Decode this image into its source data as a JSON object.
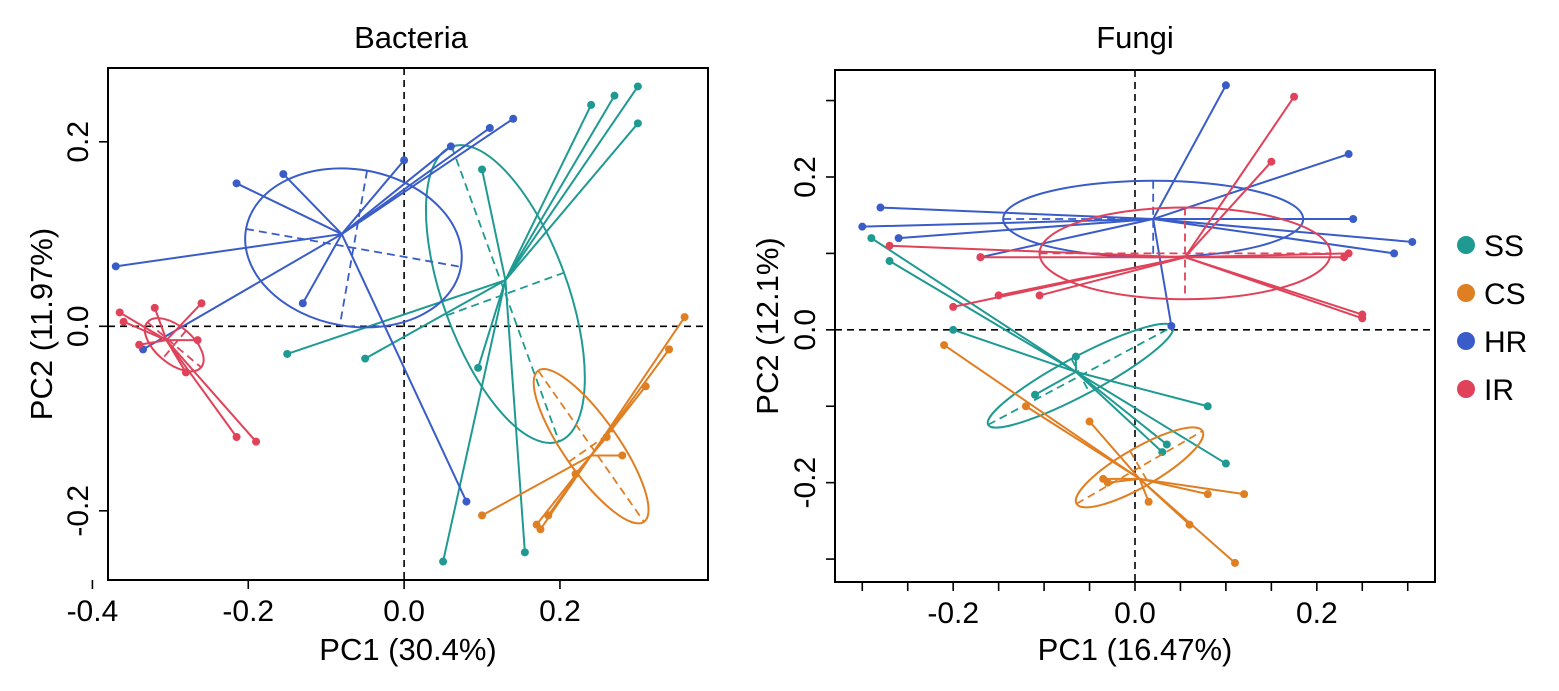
{
  "colors": {
    "SS": "#1F9A92",
    "CS": "#E07E22",
    "HR": "#3A5CC8",
    "IR": "#E0425A"
  },
  "legend": [
    {
      "group": "SS",
      "label": "SS"
    },
    {
      "group": "CS",
      "label": "CS"
    },
    {
      "group": "HR",
      "label": "HR"
    },
    {
      "group": "IR",
      "label": "IR"
    }
  ],
  "chart_data": [
    {
      "type": "scatter",
      "title": "Bacteria",
      "xlabel": "PC1 (30.4%)",
      "ylabel": "PC2 (11.97%)",
      "xlim": [
        -0.38,
        0.39
      ],
      "ylim": [
        -0.275,
        0.28
      ],
      "xticks": [
        {
          "v": -0.4,
          "label": "-0.4"
        },
        {
          "v": -0.2,
          "label": "-0.2"
        },
        {
          "v": 0.0,
          "label": "0.0"
        },
        {
          "v": 0.2,
          "label": "0.2"
        }
      ],
      "yticks": [
        {
          "v": -0.2,
          "label": "-0.2"
        },
        {
          "v": 0.0,
          "label": "0.0"
        },
        {
          "v": 0.2,
          "label": "0.2"
        }
      ],
      "groups": [
        {
          "name": "SS",
          "centroid": [
            0.13,
            0.05
          ],
          "ellipse": {
            "cx": 0.13,
            "cy": 0.035,
            "rx": 0.08,
            "ry": 0.17,
            "angle": 20
          },
          "points": [
            [
              0.3,
              0.26
            ],
            [
              0.27,
              0.25
            ],
            [
              0.24,
              0.24
            ],
            [
              0.3,
              0.22
            ],
            [
              0.1,
              0.17
            ],
            [
              -0.15,
              -0.03
            ],
            [
              -0.05,
              -0.035
            ],
            [
              0.095,
              -0.045
            ],
            [
              0.05,
              -0.255
            ],
            [
              0.155,
              -0.245
            ]
          ]
        },
        {
          "name": "CS",
          "centroid": [
            0.24,
            -0.14
          ],
          "ellipse": {
            "cx": 0.24,
            "cy": -0.13,
            "rx": 0.035,
            "ry": 0.1,
            "angle": 35
          },
          "points": [
            [
              0.36,
              0.01
            ],
            [
              0.34,
              -0.025
            ],
            [
              0.31,
              -0.065
            ],
            [
              0.28,
              -0.14
            ],
            [
              0.1,
              -0.205
            ],
            [
              0.17,
              -0.215
            ],
            [
              0.185,
              -0.205
            ],
            [
              0.175,
              -0.22
            ],
            [
              0.22,
              -0.16
            ],
            [
              0.26,
              -0.12
            ]
          ]
        },
        {
          "name": "HR",
          "centroid": [
            -0.08,
            0.1
          ],
          "ellipse": {
            "cx": -0.065,
            "cy": 0.085,
            "rx": 0.14,
            "ry": 0.085,
            "angle": -10
          },
          "points": [
            [
              0.14,
              0.225
            ],
            [
              0.11,
              0.215
            ],
            [
              0.06,
              0.195
            ],
            [
              0.0,
              0.18
            ],
            [
              -0.155,
              0.165
            ],
            [
              -0.215,
              0.155
            ],
            [
              -0.37,
              0.065
            ],
            [
              -0.13,
              0.025
            ],
            [
              -0.335,
              -0.025
            ],
            [
              0.08,
              -0.19
            ]
          ]
        },
        {
          "name": "IR",
          "centroid": [
            -0.305,
            -0.015
          ],
          "ellipse": {
            "cx": -0.295,
            "cy": -0.02,
            "rx": 0.045,
            "ry": 0.02,
            "angle": -40
          },
          "points": [
            [
              -0.365,
              0.015
            ],
            [
              -0.36,
              0.005
            ],
            [
              -0.32,
              0.02
            ],
            [
              -0.26,
              0.025
            ],
            [
              -0.34,
              -0.02
            ],
            [
              -0.265,
              -0.015
            ],
            [
              -0.215,
              -0.12
            ],
            [
              -0.19,
              -0.125
            ],
            [
              -0.28,
              -0.05
            ]
          ]
        }
      ]
    },
    {
      "type": "scatter",
      "title": "Fungi",
      "xlabel": "PC1 (16.47%)",
      "ylabel": "PC2 (12.1%)",
      "xlim": [
        -0.33,
        0.33
      ],
      "ylim": [
        -0.33,
        0.34
      ],
      "xticks": [
        {
          "v": -0.2,
          "label": "-0.2"
        },
        {
          "v": 0.0,
          "label": "0.0"
        },
        {
          "v": 0.2,
          "label": "0.2"
        }
      ],
      "minor_xticks": [
        -0.3,
        -0.25,
        -0.15,
        -0.1,
        -0.05,
        0.05,
        0.1,
        0.15,
        0.25,
        0.3
      ],
      "yticks": [
        {
          "v": -0.2,
          "label": "-0.2"
        },
        {
          "v": 0.0,
          "label": "0.0"
        },
        {
          "v": 0.2,
          "label": "0.2"
        }
      ],
      "minor_yticks": [
        -0.3,
        -0.1,
        0.1,
        0.3
      ],
      "groups": [
        {
          "name": "SS",
          "centroid": [
            -0.065,
            -0.055
          ],
          "ellipse": {
            "cx": -0.06,
            "cy": -0.06,
            "rx": 0.115,
            "ry": 0.025,
            "angle": 28
          },
          "points": [
            [
              -0.29,
              0.12
            ],
            [
              -0.27,
              0.09
            ],
            [
              -0.2,
              0.0
            ],
            [
              -0.11,
              -0.085
            ],
            [
              -0.065,
              -0.035
            ],
            [
              0.08,
              -0.1
            ],
            [
              0.035,
              -0.15
            ],
            [
              0.03,
              -0.16
            ],
            [
              0.1,
              -0.175
            ]
          ]
        },
        {
          "name": "CS",
          "centroid": [
            0.005,
            -0.195
          ],
          "ellipse": {
            "cx": 0.005,
            "cy": -0.18,
            "rx": 0.08,
            "ry": 0.025,
            "angle": 30
          },
          "points": [
            [
              -0.21,
              -0.02
            ],
            [
              -0.12,
              -0.1
            ],
            [
              -0.05,
              -0.12
            ],
            [
              -0.035,
              -0.195
            ],
            [
              -0.03,
              -0.2
            ],
            [
              0.015,
              -0.225
            ],
            [
              0.06,
              -0.255
            ],
            [
              0.08,
              -0.215
            ],
            [
              0.12,
              -0.215
            ],
            [
              0.11,
              -0.305
            ]
          ]
        },
        {
          "name": "HR",
          "centroid": [
            0.02,
            0.145
          ],
          "ellipse": {
            "cx": 0.02,
            "cy": 0.145,
            "rx": 0.165,
            "ry": 0.05,
            "angle": 0
          },
          "points": [
            [
              0.1,
              0.32
            ],
            [
              0.235,
              0.23
            ],
            [
              -0.28,
              0.16
            ],
            [
              -0.3,
              0.135
            ],
            [
              -0.26,
              0.12
            ],
            [
              -0.17,
              0.095
            ],
            [
              0.04,
              0.005
            ],
            [
              0.24,
              0.145
            ],
            [
              0.305,
              0.115
            ],
            [
              0.285,
              0.1
            ]
          ]
        },
        {
          "name": "IR",
          "centroid": [
            0.055,
            0.095
          ],
          "ellipse": {
            "cx": 0.055,
            "cy": 0.1,
            "rx": 0.16,
            "ry": 0.06,
            "angle": 0
          },
          "points": [
            [
              0.175,
              0.305
            ],
            [
              0.15,
              0.22
            ],
            [
              -0.27,
              0.11
            ],
            [
              -0.17,
              0.095
            ],
            [
              -0.15,
              0.045
            ],
            [
              -0.105,
              0.045
            ],
            [
              -0.2,
              0.03
            ],
            [
              0.235,
              0.1
            ],
            [
              0.23,
              0.095
            ],
            [
              0.25,
              0.02
            ],
            [
              0.25,
              0.015
            ]
          ]
        }
      ]
    }
  ]
}
